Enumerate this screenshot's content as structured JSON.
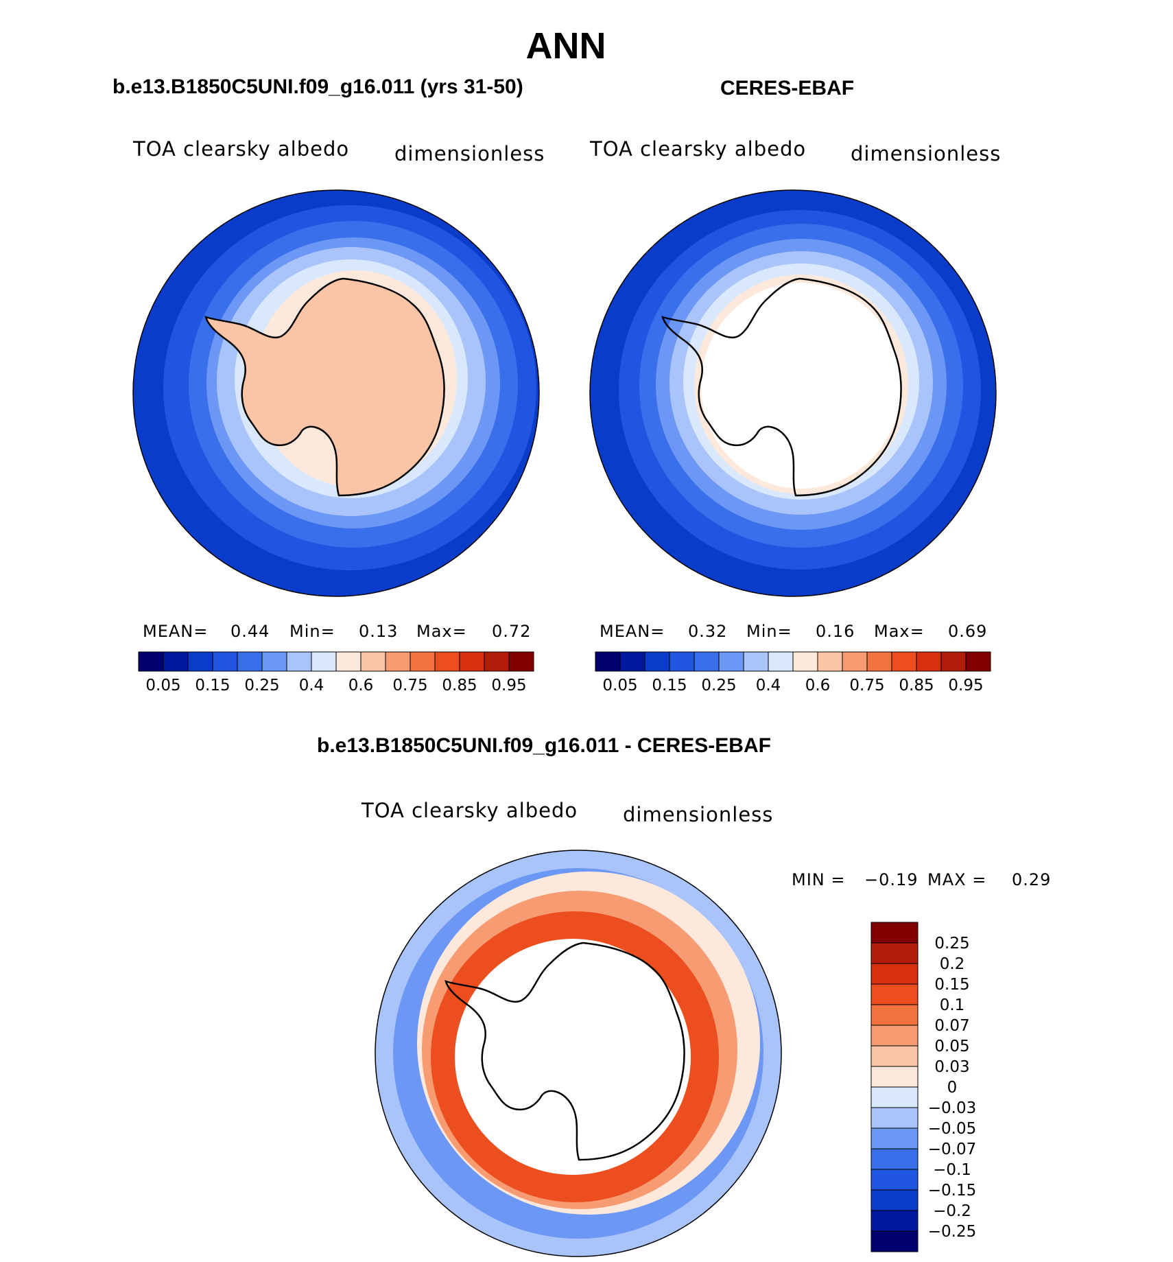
{
  "title": "ANN",
  "panels": [
    {
      "subtitle": "b.e13.B1850C5UNI.f09_g16.011 (yrs 31-50)",
      "variable": "TOA clearsky albedo",
      "units": "dimensionless",
      "stats": {
        "mean_label": "MEAN=",
        "mean": "0.44",
        "min_label": "Min=",
        "min": "0.13",
        "max_label": "Max=",
        "max": "0.72"
      }
    },
    {
      "subtitle": "CERES-EBAF",
      "variable": "TOA clearsky albedo",
      "units": "dimensionless",
      "stats": {
        "mean_label": "MEAN=",
        "mean": "0.32",
        "min_label": "Min=",
        "min": "0.16",
        "max_label": "Max=",
        "max": "0.69"
      }
    }
  ],
  "diff_panel": {
    "subtitle": "b.e13.B1850C5UNI.f09_g16.011 - CERES-EBAF",
    "variable": "TOA clearsky albedo",
    "units": "dimensionless",
    "min_label": "MIN =",
    "min": "−0.19",
    "max_label": "MAX =",
    "max": "0.29"
  },
  "colorbar_top": {
    "colors": [
      "#00006e",
      "#0018a0",
      "#0a3ccc",
      "#1f55e0",
      "#3a6fec",
      "#6c97f4",
      "#a9c4fa",
      "#d9e8fd",
      "#fde8dc",
      "#fbc4a6",
      "#f79b73",
      "#f2723f",
      "#ec4e1f",
      "#d7300f",
      "#b21c09",
      "#830000"
    ],
    "labels": [
      "0.05",
      "0.15",
      "0.25",
      "0.4",
      "0.6",
      "0.75",
      "0.85",
      "0.95"
    ]
  },
  "colorbar_diff": {
    "colors": [
      "#830000",
      "#b21c09",
      "#d7300f",
      "#ec4e1f",
      "#f2723f",
      "#f79b73",
      "#fbc4a6",
      "#fde8dc",
      "#d9e8fd",
      "#a9c4fa",
      "#6c97f4",
      "#3a6fec",
      "#1f55e0",
      "#0a3ccc",
      "#0018a0",
      "#00006e"
    ],
    "labels": [
      "0.25",
      "0.2",
      "0.15",
      "0.1",
      "0.07",
      "0.05",
      "0.03",
      "0",
      "−0.03",
      "−0.05",
      "−0.07",
      "−0.1",
      "−0.15",
      "−0.2",
      "−0.25"
    ]
  }
}
